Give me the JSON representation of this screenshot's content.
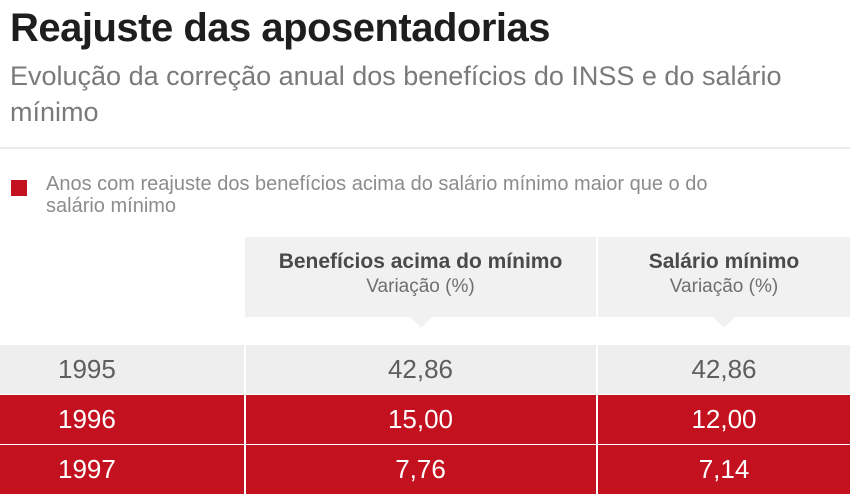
{
  "header": {
    "title": "Reajuste das aposentadorias",
    "subtitle": "Evolução da correção anual dos benefícios do INSS e do salário mínimo"
  },
  "legend": {
    "label": "Anos com reajuste dos benefícios acima do salário mínimo maior que o do salário mínimo",
    "color": "#c4111f"
  },
  "colors": {
    "highlight": "#c4111f",
    "row_background": "#eeeeee",
    "header_background": "#f1f1f1"
  },
  "chart_data": {
    "type": "table",
    "columns": [
      {
        "title": "Benefícios acima do mínimo",
        "subtitle": "Variação (%)"
      },
      {
        "title": "Salário mínimo",
        "subtitle": "Variação (%)"
      }
    ],
    "rows": [
      {
        "year": "1995",
        "beneficios": "42,86",
        "salario": "42,86",
        "highlight": false
      },
      {
        "year": "1996",
        "beneficios": "15,00",
        "salario": "12,00",
        "highlight": true
      },
      {
        "year": "1997",
        "beneficios": "7,76",
        "salario": "7,14",
        "highlight": true
      }
    ]
  }
}
